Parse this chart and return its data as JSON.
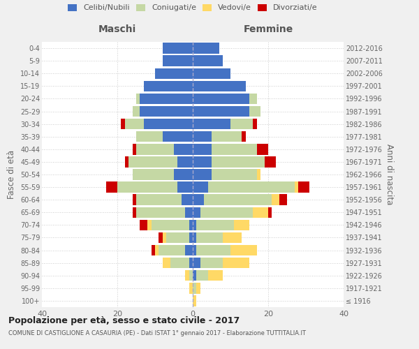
{
  "age_groups": [
    "100+",
    "95-99",
    "90-94",
    "85-89",
    "80-84",
    "75-79",
    "70-74",
    "65-69",
    "60-64",
    "55-59",
    "50-54",
    "45-49",
    "40-44",
    "35-39",
    "30-34",
    "25-29",
    "20-24",
    "15-19",
    "10-14",
    "5-9",
    "0-4"
  ],
  "birth_years": [
    "≤ 1916",
    "1917-1921",
    "1922-1926",
    "1927-1931",
    "1932-1936",
    "1937-1941",
    "1942-1946",
    "1947-1951",
    "1952-1956",
    "1957-1961",
    "1962-1966",
    "1967-1971",
    "1972-1976",
    "1977-1981",
    "1982-1986",
    "1987-1991",
    "1992-1996",
    "1997-2001",
    "2002-2006",
    "2007-2011",
    "2012-2016"
  ],
  "colors": {
    "celibi": "#4472C4",
    "coniugati": "#c5d8a4",
    "vedovi": "#FFD966",
    "divorziati": "#CC0000"
  },
  "maschi": {
    "celibi": [
      0,
      0,
      0,
      1,
      2,
      1,
      1,
      2,
      3,
      4,
      5,
      4,
      5,
      8,
      13,
      14,
      14,
      13,
      10,
      8,
      8
    ],
    "coniugati": [
      0,
      0,
      1,
      5,
      7,
      6,
      10,
      13,
      12,
      16,
      11,
      13,
      10,
      7,
      5,
      2,
      1,
      0,
      0,
      0,
      0
    ],
    "vedovi": [
      0,
      1,
      1,
      2,
      1,
      1,
      1,
      0,
      0,
      0,
      0,
      0,
      0,
      0,
      0,
      0,
      0,
      0,
      0,
      0,
      0
    ],
    "divorziati": [
      0,
      0,
      0,
      0,
      1,
      1,
      2,
      1,
      1,
      3,
      0,
      1,
      1,
      0,
      1,
      0,
      0,
      0,
      0,
      0,
      0
    ]
  },
  "femmine": {
    "celibi": [
      0,
      0,
      1,
      2,
      1,
      1,
      1,
      2,
      3,
      4,
      5,
      5,
      5,
      5,
      10,
      15,
      15,
      14,
      10,
      8,
      7
    ],
    "coniugati": [
      0,
      1,
      3,
      6,
      9,
      7,
      10,
      14,
      18,
      23,
      12,
      14,
      12,
      8,
      6,
      3,
      2,
      0,
      0,
      0,
      0
    ],
    "vedovi": [
      1,
      1,
      4,
      7,
      7,
      5,
      4,
      4,
      2,
      1,
      1,
      0,
      0,
      0,
      0,
      0,
      0,
      0,
      0,
      0,
      0
    ],
    "divorziati": [
      0,
      0,
      0,
      0,
      0,
      0,
      0,
      1,
      2,
      3,
      0,
      3,
      3,
      1,
      1,
      0,
      0,
      0,
      0,
      0,
      0
    ]
  },
  "xlim": 40,
  "title": "Popolazione per età, sesso e stato civile - 2017",
  "subtitle": "COMUNE DI CASTIGLIONE A CASAURIA (PE) - Dati ISTAT 1° gennaio 2017 - Elaborazione TUTTITALIA.IT",
  "ylabel": "Fasce di età",
  "ylabel_right": "Anni di nascita",
  "xlabel_left": "Maschi",
  "xlabel_right": "Femmine",
  "legend_labels": [
    "Celibi/Nubili",
    "Coniugati/e",
    "Vedovi/e",
    "Divorziati/e"
  ],
  "bg_color": "#f0f0f0",
  "plot_bg": "#ffffff"
}
